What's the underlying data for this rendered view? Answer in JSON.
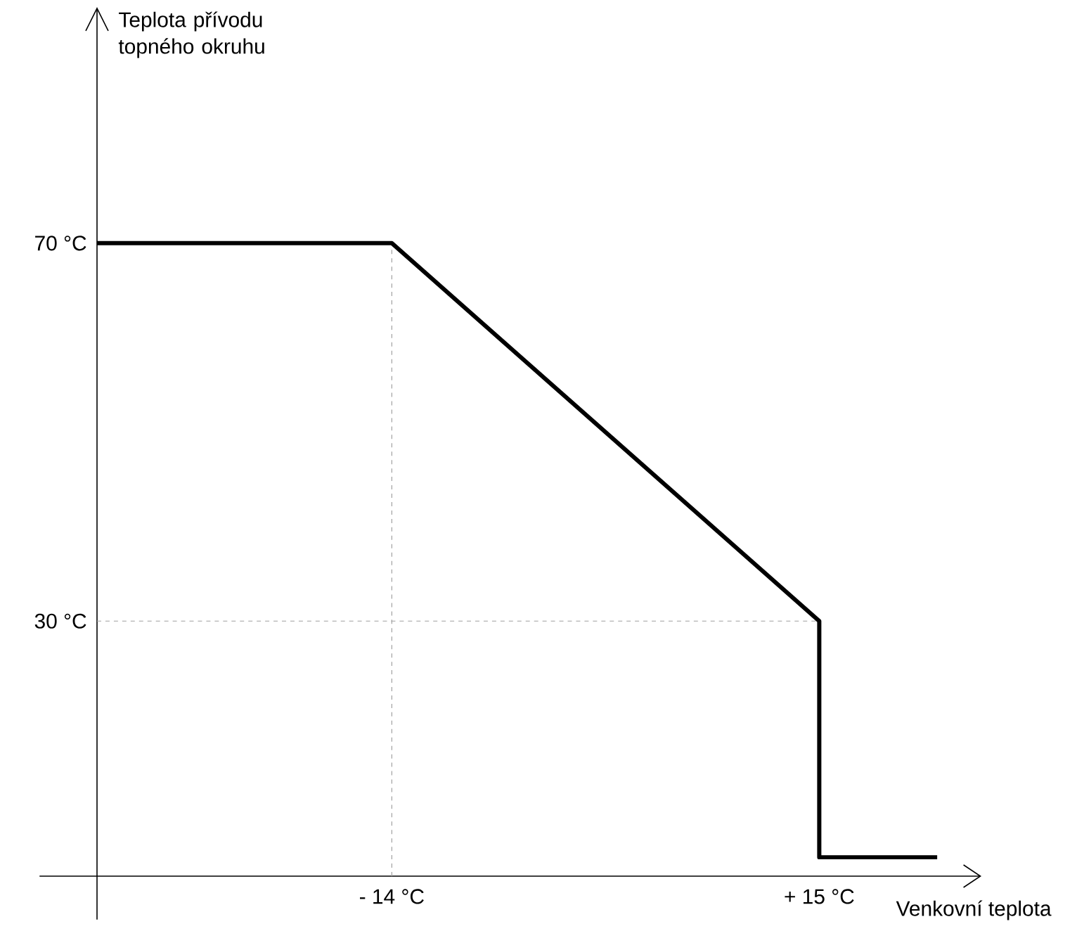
{
  "chart_data": {
    "type": "line",
    "xlabel": "Venkovní teplota",
    "ylabel": "Teplota přívodu topného okruhu",
    "x": [
      -34,
      -14,
      15,
      15,
      23
    ],
    "series": [
      {
        "color": "#000000",
        "values": [
          70,
          70,
          30,
          5,
          5
        ]
      }
    ],
    "xlim": [
      -34,
      26
    ],
    "ylim": [
      3,
      95
    ],
    "xticks": [
      {
        "value": -14,
        "label": "- 14 °C"
      },
      {
        "value": 15,
        "label": "+ 15 °C"
      }
    ],
    "yticks": [
      {
        "value": 30,
        "label": "30 °C"
      },
      {
        "value": 70,
        "label": "70 °C"
      }
    ],
    "ref_lines": [
      {
        "axis": "x",
        "value": -14,
        "color": "#a0a0a0",
        "line_style": "dashed"
      },
      {
        "axis": "y",
        "value": 30,
        "color": "#a0a0a0",
        "line_style": "dashed"
      }
    ],
    "marker": "none",
    "line_style": "solid"
  }
}
